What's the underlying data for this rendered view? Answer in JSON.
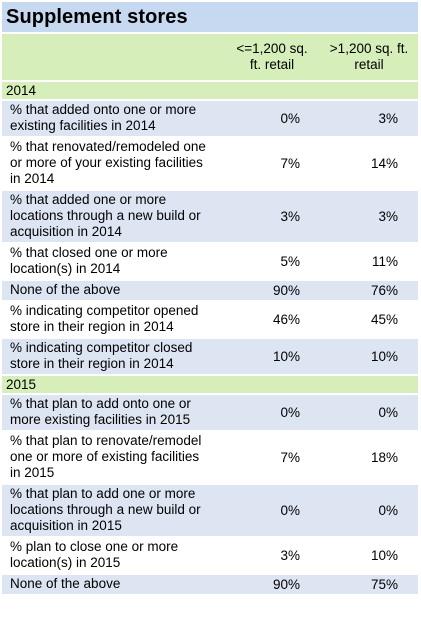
{
  "title": "Supplement stores",
  "columns": [
    "<=1,200 sq. ft. retail",
    ">1,200 sq. ft. retail"
  ],
  "column_lines": [
    [
      "<=1,200 sq.",
      "ft. retail"
    ],
    [
      ">1,200 sq. ft.",
      "retail"
    ]
  ],
  "sections": [
    {
      "label": "2014",
      "rows": [
        {
          "label": "% that added onto one or more existing facilities in 2014",
          "lines": [
            "% that added onto one or more",
            "existing facilities in 2014"
          ],
          "v1": "0%",
          "v2": "3%"
        },
        {
          "label": "% that renovated/remodeled one or more of your existing facilities in 2014",
          "lines": [
            "% that renovated/remodeled one",
            "or more of your existing facilities",
            "in 2014"
          ],
          "v1": "7%",
          "v2": "14%"
        },
        {
          "label": "% that added one or more locations through a new build or acquisition in 2014",
          "lines": [
            "% that added one or more",
            "locations through a new build or",
            "acquisition in 2014"
          ],
          "v1": "3%",
          "v2": "3%"
        },
        {
          "label": "% that closed one or more location(s) in 2014",
          "lines": [
            "% that closed one or more",
            "location(s) in 2014"
          ],
          "v1": "5%",
          "v2": "11%"
        },
        {
          "label": "None of the above",
          "lines": [
            "None of the above"
          ],
          "v1": "90%",
          "v2": "76%"
        },
        {
          "label": "% indicating competitor opened store in their region in 2014",
          "lines": [
            "% indicating competitor opened",
            "store in their region in 2014"
          ],
          "v1": "46%",
          "v2": "45%"
        },
        {
          "label": "% indicating competitor closed store in their region in 2014",
          "lines": [
            "% indicating competitor closed",
            "store in their region in 2014"
          ],
          "v1": "10%",
          "v2": "10%"
        }
      ]
    },
    {
      "label": "2015",
      "rows": [
        {
          "label": "% that plan to add onto one or more existing facilities in 2015",
          "lines": [
            "% that plan to add onto one or",
            "more existing facilities in 2015"
          ],
          "v1": "0%",
          "v2": "0%"
        },
        {
          "label": "% that plan to renovate/remodel one or more of existing facilities in 2015",
          "lines": [
            "% that plan to renovate/remodel",
            "one or more of existing facilities",
            "in 2015"
          ],
          "v1": "7%",
          "v2": "18%"
        },
        {
          "label": "% that plan to add one or more locations through a new build or acquisition in 2015",
          "lines": [
            "% that plan to add one or more",
            "locations through a new build or",
            "acquisition in 2015"
          ],
          "v1": "0%",
          "v2": "0%"
        },
        {
          "label": "% plan to close one or more location(s) in 2015",
          "lines": [
            "% plan to close one or more",
            "location(s) in 2015"
          ],
          "v1": "3%",
          "v2": "10%"
        },
        {
          "label": "None of the above",
          "lines": [
            "None of the above"
          ],
          "v1": "90%",
          "v2": "75%"
        }
      ]
    }
  ],
  "colors": {
    "title_bg": "#c6d9f1",
    "header_bg": "#d6eeb9",
    "row_shaded": "#dde5f3",
    "row_plain": "#ffffff"
  }
}
